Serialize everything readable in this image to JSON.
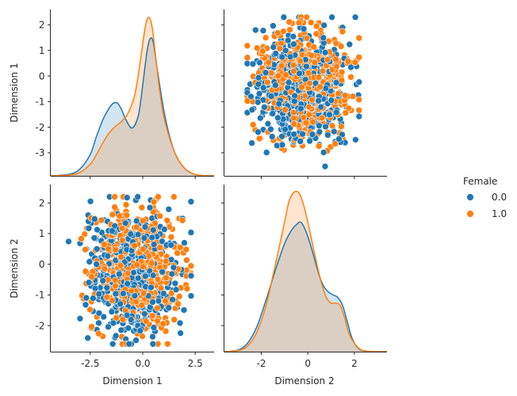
{
  "chart_data": {
    "type": "pairplot",
    "variables": [
      "Dimension 1",
      "Dimension 2"
    ],
    "hue": {
      "title": "Female",
      "levels": [
        {
          "label": "0.0",
          "color": "#1f77b4"
        },
        {
          "label": "1.0",
          "color": "#ff7f0e"
        }
      ]
    },
    "panels": [
      {
        "id": "d1-d1",
        "type": "kde",
        "x": "Dimension 1",
        "xlim": [
          -4.4,
          3.4
        ],
        "ylabel": "Dimension 1",
        "left_ticks": [
          "2",
          "1",
          "0",
          "-1",
          "-2",
          "-3"
        ],
        "left_tick_values": [
          2,
          1,
          0,
          -1,
          -2,
          -3
        ],
        "left_ylim": [
          -3.9,
          2.6
        ],
        "series": [
          {
            "name": "0.0",
            "color": "#1f77b4",
            "x": [
              -4.4,
              -3.5,
              -3.0,
              -2.5,
              -2.2,
              -1.9,
              -1.6,
              -1.4,
              -1.2,
              -1.0,
              -0.8,
              -0.5,
              -0.2,
              0.0,
              0.2,
              0.35,
              0.5,
              0.7,
              1.0,
              1.3,
              1.6,
              2.0,
              2.4,
              2.8,
              3.4
            ],
            "y": [
              0.0,
              0.01,
              0.04,
              0.13,
              0.24,
              0.34,
              0.41,
              0.44,
              0.44,
              0.4,
              0.34,
              0.29,
              0.37,
              0.55,
              0.75,
              0.83,
              0.81,
              0.64,
              0.4,
              0.23,
              0.12,
              0.045,
              0.012,
              0.002,
              0.0
            ]
          },
          {
            "name": "1.0",
            "color": "#ff7f0e",
            "x": [
              -4.4,
              -3.5,
              -3.0,
              -2.5,
              -2.2,
              -1.9,
              -1.6,
              -1.3,
              -1.0,
              -0.7,
              -0.4,
              -0.2,
              0.0,
              0.15,
              0.3,
              0.45,
              0.6,
              0.8,
              1.0,
              1.3,
              1.6,
              2.0,
              2.4,
              2.8,
              3.4
            ],
            "y": [
              0.0,
              0.005,
              0.02,
              0.07,
              0.13,
              0.2,
              0.26,
              0.3,
              0.33,
              0.38,
              0.48,
              0.62,
              0.8,
              0.92,
              0.96,
              0.9,
              0.74,
              0.52,
              0.36,
              0.22,
              0.12,
              0.045,
              0.012,
              0.002,
              0.0
            ]
          }
        ]
      },
      {
        "id": "d2-d1",
        "type": "scatter",
        "x": "Dimension 2",
        "y": "Dimension 1",
        "xlim": [
          -3.6,
          3.4
        ],
        "ylim": [
          -3.9,
          2.6
        ]
      },
      {
        "id": "d1-d2",
        "type": "scatter",
        "x": "Dimension 1",
        "y": "Dimension 2",
        "xlim": [
          -4.4,
          3.4
        ],
        "ylim": [
          -2.85,
          2.6
        ],
        "ylabel": "Dimension 2",
        "left_ticks": [
          "2",
          "1",
          "0",
          "-1",
          "-2"
        ],
        "left_tick_values": [
          2,
          1,
          0,
          -1,
          -2
        ],
        "xlabel": "Dimension 1",
        "bottom_ticks": [
          "-2.5",
          "0.0",
          "2.5"
        ],
        "bottom_tick_values": [
          -2.5,
          0.0,
          2.5
        ]
      },
      {
        "id": "d2-d2",
        "type": "kde",
        "x": "Dimension 2",
        "xlim": [
          -3.6,
          3.4
        ],
        "xlabel": "Dimension 2",
        "bottom_ticks": [
          "-2",
          "0",
          "2"
        ],
        "bottom_tick_values": [
          -2,
          0,
          2
        ],
        "series": [
          {
            "name": "0.0",
            "color": "#1f77b4",
            "x": [
              -3.6,
              -3.0,
              -2.6,
              -2.2,
              -1.8,
              -1.4,
              -1.0,
              -0.7,
              -0.5,
              -0.3,
              -0.1,
              0.1,
              0.3,
              0.5,
              0.7,
              0.9,
              1.1,
              1.3,
              1.5,
              1.7,
              1.9,
              2.2,
              2.6,
              3.0,
              3.4
            ],
            "y": [
              0.0,
              0.006,
              0.03,
              0.09,
              0.19,
              0.3,
              0.4,
              0.45,
              0.47,
              0.48,
              0.45,
              0.4,
              0.34,
              0.28,
              0.24,
              0.22,
              0.21,
              0.2,
              0.17,
              0.11,
              0.05,
              0.01,
              0.001,
              0.0,
              0.0
            ]
          },
          {
            "name": "1.0",
            "color": "#ff7f0e",
            "x": [
              -3.6,
              -3.0,
              -2.6,
              -2.2,
              -1.8,
              -1.4,
              -1.0,
              -0.8,
              -0.6,
              -0.4,
              -0.2,
              0.0,
              0.2,
              0.4,
              0.6,
              0.8,
              1.0,
              1.2,
              1.4,
              1.6,
              1.8,
              2.2,
              2.6,
              3.0,
              3.4
            ],
            "y": [
              0.0,
              0.004,
              0.02,
              0.07,
              0.17,
              0.32,
              0.48,
              0.56,
              0.59,
              0.59,
              0.55,
              0.48,
              0.4,
              0.32,
              0.25,
              0.2,
              0.18,
              0.18,
              0.17,
              0.12,
              0.06,
              0.012,
              0.001,
              0.0,
              0.0
            ]
          }
        ]
      }
    ],
    "scatter_cloud": {
      "dim1_range": [
        -3.6,
        2.3
      ],
      "dim2_range": [
        -2.6,
        2.2
      ],
      "points_per_group": 550
    },
    "grid": false,
    "legend_position": "right"
  }
}
